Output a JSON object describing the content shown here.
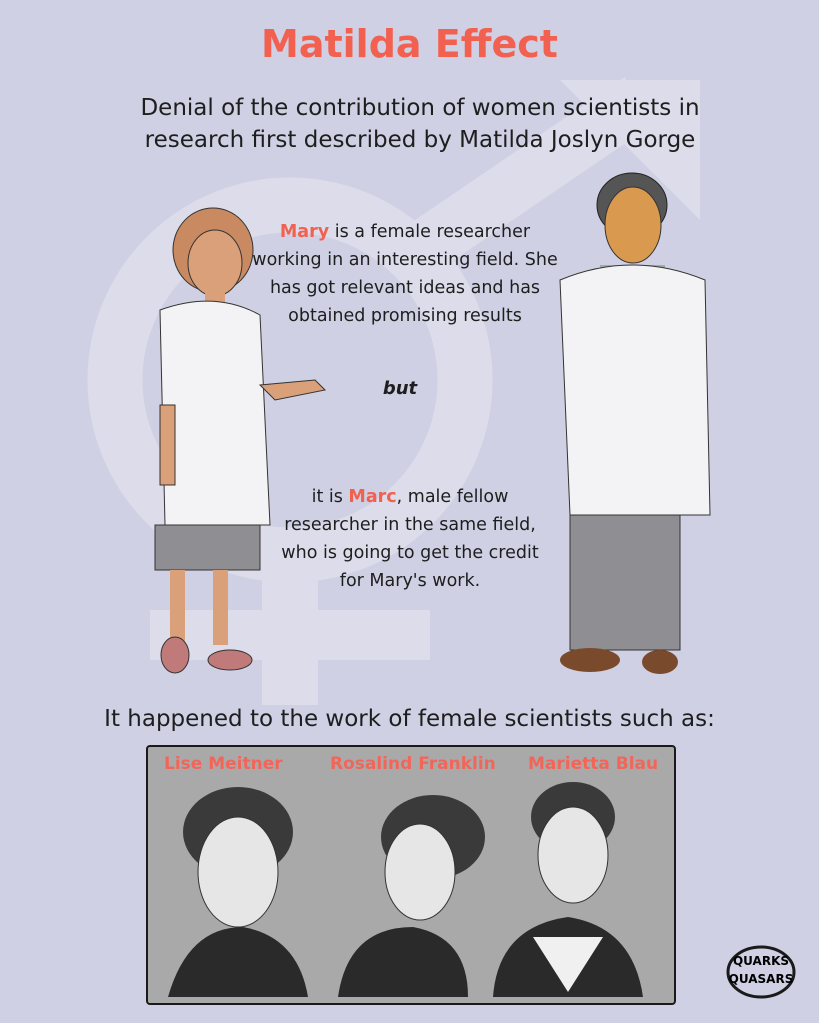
{
  "title": "Matilda Effect",
  "subtitle": "Denial of the contribution of women scientists in research first described by Matilda Joslyn Gorge",
  "story": {
    "mary_name": "Mary",
    "mary_text": " is a female researcher working in an interesting field. She has got relevant ideas and has obtained promising results",
    "connector": "but",
    "marc_prefix": "it is ",
    "marc_name": "Marc",
    "marc_text": ", male fellow researcher in the same field, who is going to get the credit for Mary's work."
  },
  "examples_lead": "It happened to the work of female scientists such as:",
  "scientists": [
    "Lise Meitner",
    "Rosalind Franklin",
    "Marietta Blau"
  ],
  "logo": "From Quarks to Quasars",
  "colors": {
    "accent": "#f2604f",
    "background": "#cfd0e3",
    "panel": "#a9a9a9"
  }
}
